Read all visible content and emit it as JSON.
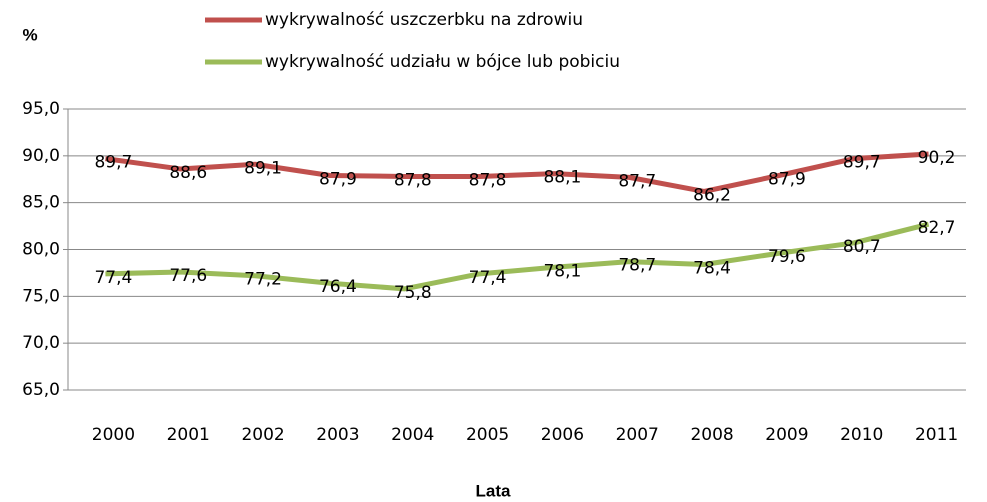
{
  "chart_data": {
    "type": "line",
    "y_label": "%",
    "x_label": "Lata",
    "categories": [
      "2000",
      "2001",
      "2002",
      "2003",
      "2004",
      "2005",
      "2006",
      "2007",
      "2008",
      "2009",
      "2010",
      "2011"
    ],
    "series": [
      {
        "name": "wykrywalność uszczerbku na zdrowiu",
        "color": "#c0504d",
        "values": [
          89.7,
          88.6,
          89.1,
          87.9,
          87.8,
          87.8,
          88.1,
          87.7,
          86.2,
          87.9,
          89.7,
          90.2
        ],
        "value_labels": [
          "89,7",
          "88,6",
          "89,1",
          "87,9",
          "87,8",
          "87,8",
          "88,1",
          "87,7",
          "86,2",
          "87,9",
          "89,7",
          "90,2"
        ]
      },
      {
        "name": "wykrywalność udziału w bójce lub pobiciu",
        "color": "#9bbb59",
        "values": [
          77.4,
          77.6,
          77.2,
          76.4,
          75.8,
          77.4,
          78.1,
          78.7,
          78.4,
          79.6,
          80.7,
          82.7
        ],
        "value_labels": [
          "77,4",
          "77,6",
          "77,2",
          "76,4",
          "75,8",
          "77,4",
          "78,1",
          "78,7",
          "78,4",
          "79,6",
          "80,7",
          "82,7"
        ]
      }
    ],
    "ylim": [
      65,
      95
    ],
    "yticks": [
      {
        "value": 65,
        "label": "65,0"
      },
      {
        "value": 70,
        "label": "70,0"
      },
      {
        "value": 75,
        "label": "75,0"
      },
      {
        "value": 80,
        "label": "80,0"
      },
      {
        "value": 85,
        "label": "85,0"
      },
      {
        "value": 90,
        "label": "90,0"
      },
      {
        "value": 95,
        "label": "95,0"
      }
    ],
    "grid": true,
    "legend": "top"
  }
}
